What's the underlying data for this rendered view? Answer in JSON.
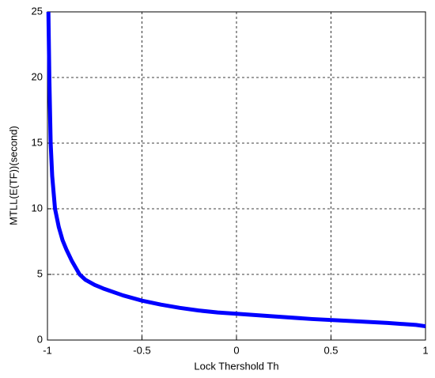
{
  "chart_data": {
    "type": "line",
    "x_label": "Lock Thershold Th",
    "y_label": "MTLL(E(TF))(second)",
    "x": [
      -0.995,
      -0.99,
      -0.983,
      -0.975,
      -0.96,
      -0.94,
      -0.92,
      -0.9,
      -0.87,
      -0.83,
      -0.8,
      -0.75,
      -0.7,
      -0.6,
      -0.5,
      -0.4,
      -0.3,
      -0.2,
      -0.1,
      0,
      0.2,
      0.4,
      0.6,
      0.8,
      0.95,
      1
    ],
    "series": [
      {
        "name": "MTLL",
        "color": "#0000ff",
        "values": [
          25,
          20,
          15,
          12.5,
          10,
          8.6,
          7.6,
          6.9,
          6.0,
          5.0,
          4.6,
          4.2,
          3.9,
          3.4,
          3.0,
          2.7,
          2.45,
          2.25,
          2.1,
          2.0,
          1.8,
          1.6,
          1.45,
          1.3,
          1.15,
          1.05
        ]
      }
    ],
    "xlim": [
      -1,
      1
    ],
    "xticks": [
      -1,
      -0.5,
      0,
      0.5,
      1
    ],
    "ylim": [
      0,
      25
    ],
    "yticks": [
      0,
      5,
      10,
      15,
      20,
      25
    ],
    "grid": true
  }
}
